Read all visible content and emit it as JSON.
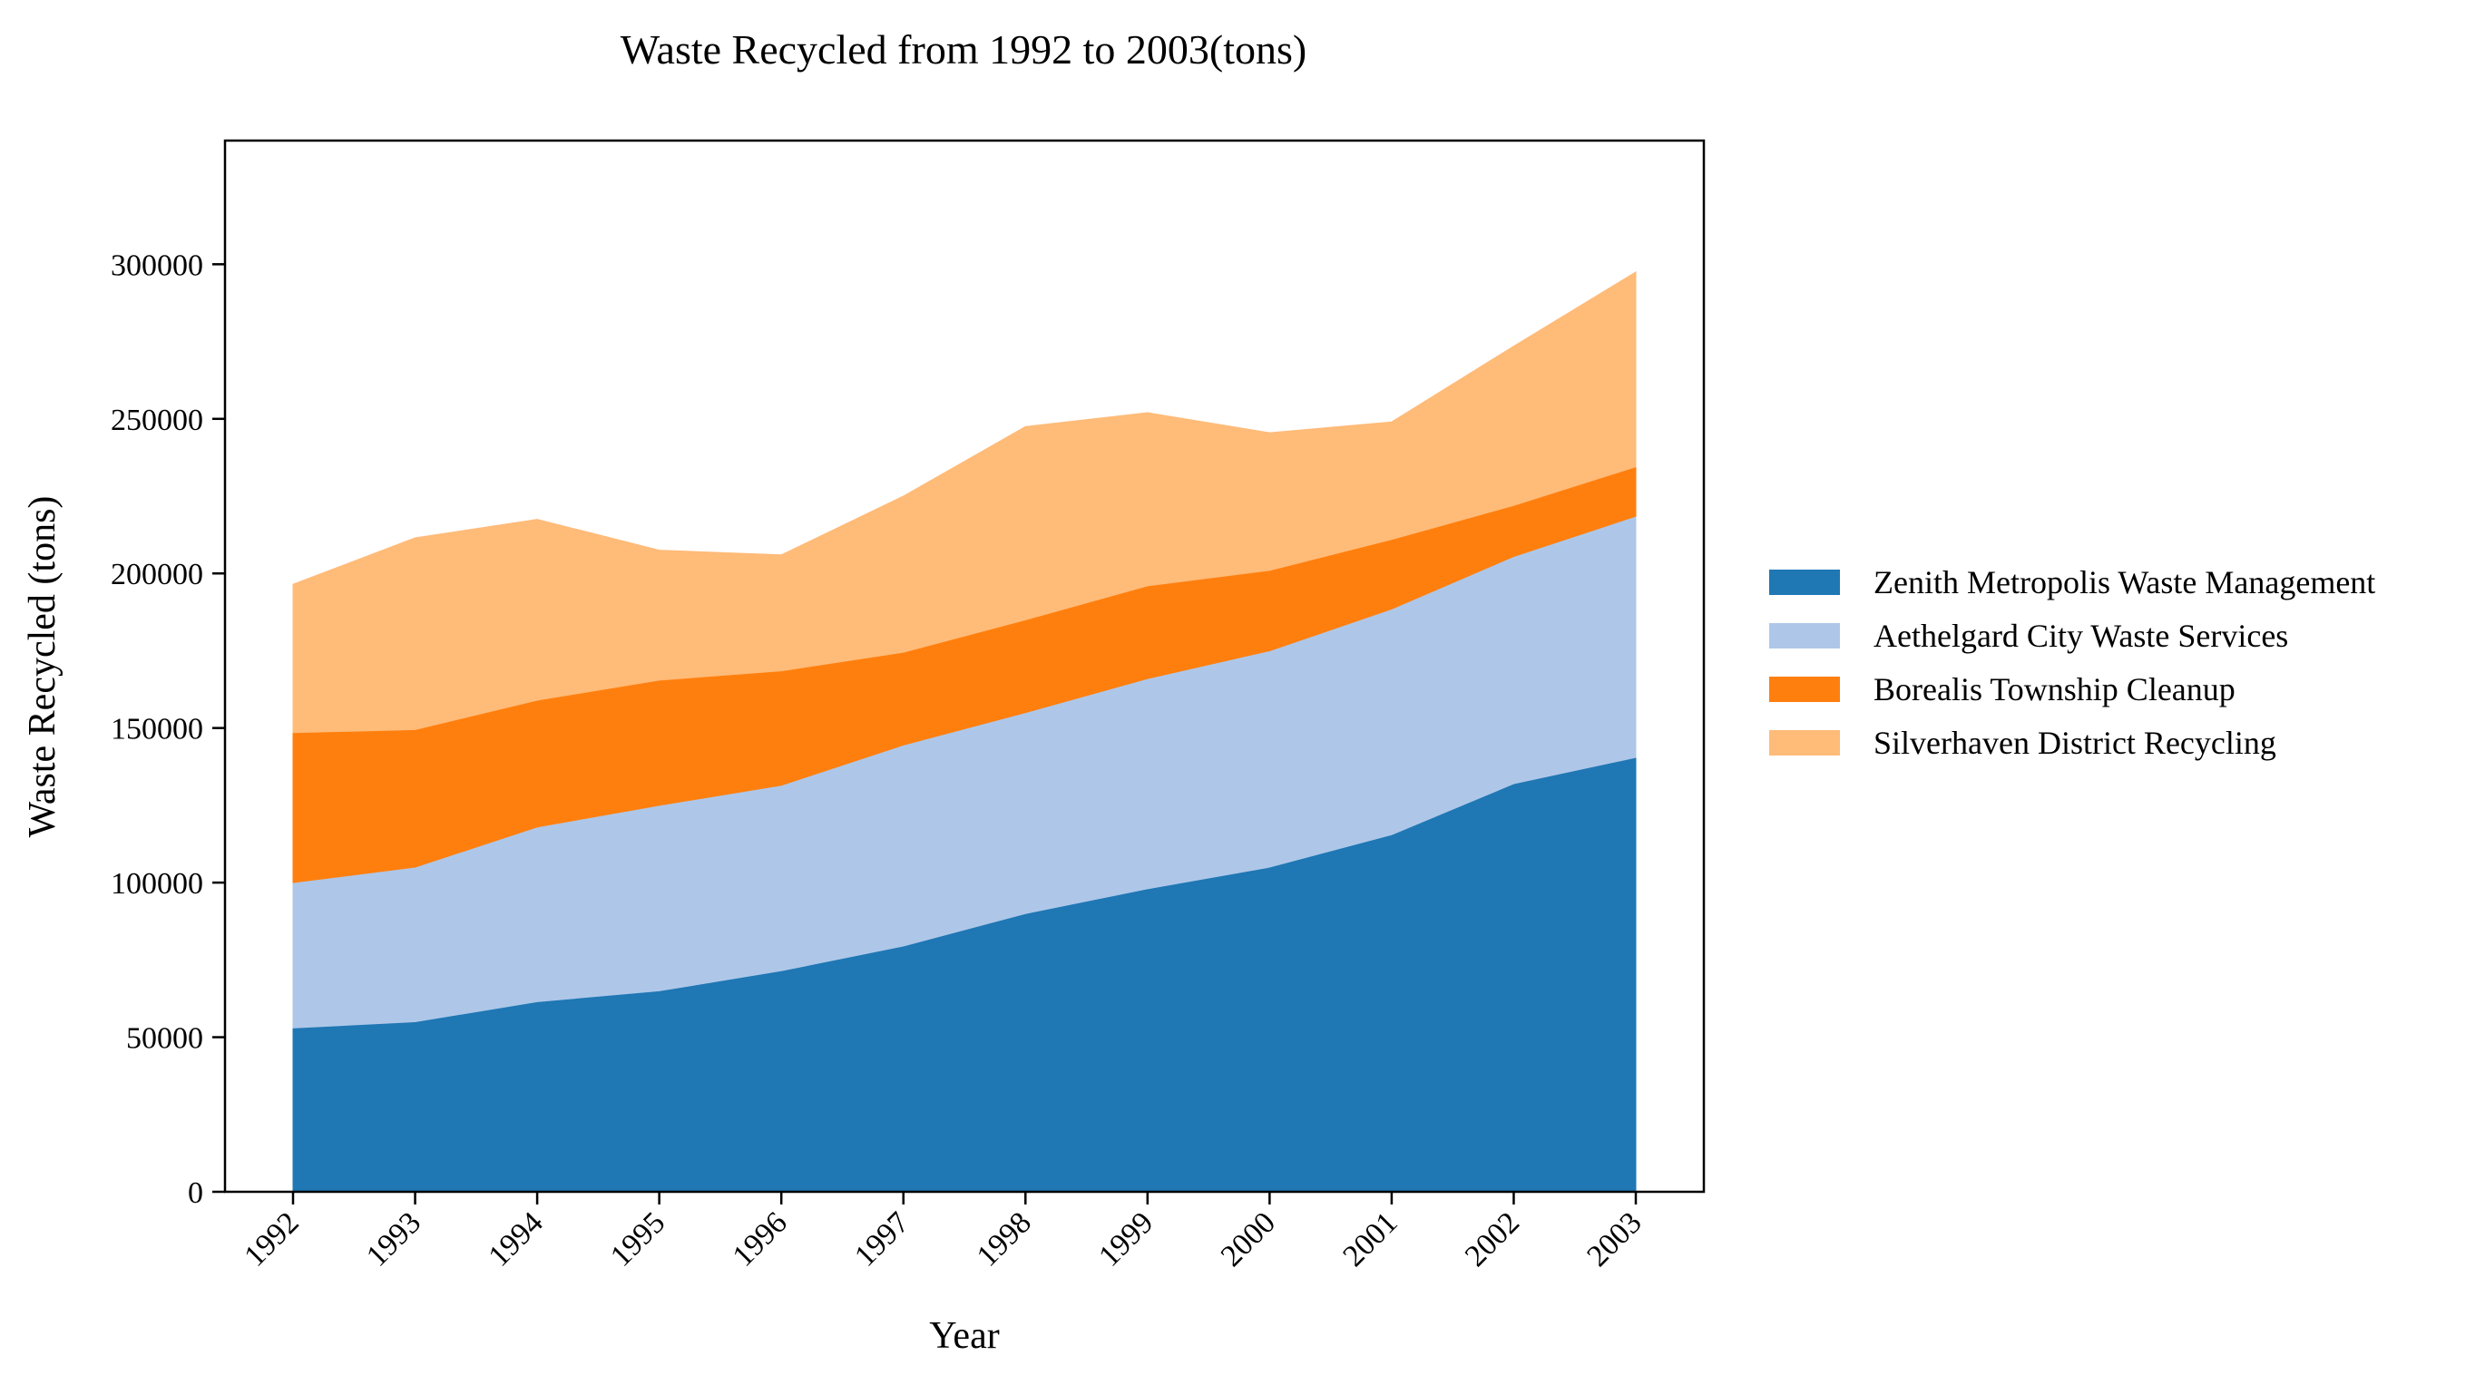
{
  "chart_data": {
    "type": "area",
    "stacked": true,
    "title": "Waste Recycled from 1992 to 2003(tons)",
    "xlabel": "Year",
    "ylabel": "Waste Recycled (tons)",
    "x": [
      "1992",
      "1993",
      "1994",
      "1995",
      "1996",
      "1997",
      "1998",
      "1999",
      "2000",
      "2001",
      "2002",
      "2003"
    ],
    "ylim": [
      0,
      340000
    ],
    "yticks": [
      0,
      50000,
      100000,
      150000,
      200000,
      250000,
      300000
    ],
    "ytick_labels": [
      "0",
      "50000",
      "100000",
      "150000",
      "200000",
      "250000",
      "300000"
    ],
    "grid": false,
    "legend_position": "right",
    "series": [
      {
        "name": "Zenith Metropolis Waste Management",
        "color": "#1f77b4",
        "values": [
          53000,
          55000,
          61500,
          65000,
          71500,
          79500,
          90000,
          98000,
          105000,
          115500,
          132000,
          140500
        ]
      },
      {
        "name": "Aethelgard City Waste Services",
        "color": "#aec7e8",
        "values": [
          47000,
          50000,
          56500,
          60000,
          60000,
          65000,
          65000,
          68000,
          70000,
          73000,
          73500,
          78000
        ]
      },
      {
        "name": "Borealis Township Cleanup",
        "color": "#ff7f0e",
        "values": [
          48500,
          44500,
          41000,
          40500,
          37000,
          30000,
          30000,
          30000,
          26000,
          22500,
          16500,
          16000
        ]
      },
      {
        "name": "Silverhaven District Recycling",
        "color": "#ffbb78",
        "values": [
          48000,
          62000,
          58500,
          42000,
          37500,
          50500,
          62500,
          56000,
          44500,
          38000,
          51500,
          63000
        ]
      }
    ]
  }
}
